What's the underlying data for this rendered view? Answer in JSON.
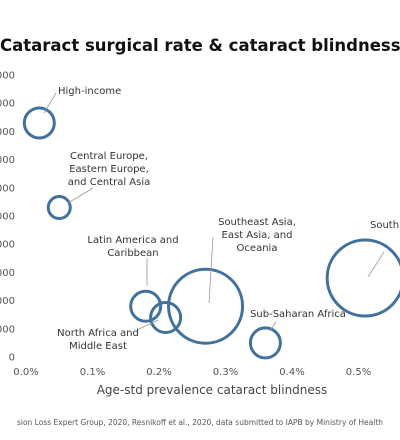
{
  "chart_data": {
    "type": "scatter",
    "title": "Cataract surgical rate & cataract blindness",
    "xlabel": "Age-std prevalence cataract blindness",
    "ylabel": "",
    "x_ticks": [
      "0.0%",
      "0.1%",
      "0.2%",
      "0.3%",
      "0.4%",
      "0.5%"
    ],
    "y_ticks": [
      "0",
      "000",
      "000",
      "000",
      "000",
      "000",
      "000",
      "000",
      "000",
      "000",
      "000"
    ],
    "xlim": [
      0,
      0.56
    ],
    "ylim": [
      0,
      10
    ],
    "grid": false,
    "legend": "none",
    "bubble_color": "#41719c",
    "points": [
      {
        "x": 0.02,
        "y": 8.3,
        "size": 15,
        "label_lines": [
          "High-income"
        ]
      },
      {
        "x": 0.05,
        "y": 5.3,
        "size": 11,
        "label_lines": [
          "Central Europe,",
          "Eastern Europe,",
          "and Central Asia"
        ]
      },
      {
        "x": 0.18,
        "y": 1.8,
        "size": 15,
        "label_lines": [
          "Latin America and",
          "Caribbean"
        ]
      },
      {
        "x": 0.21,
        "y": 1.4,
        "size": 15,
        "label_lines": [
          "North Africa and",
          "Middle East"
        ]
      },
      {
        "x": 0.27,
        "y": 1.8,
        "size": 37,
        "label_lines": [
          "Southeast Asia,",
          "East Asia, and",
          "Oceania"
        ]
      },
      {
        "x": 0.36,
        "y": 0.5,
        "size": 15,
        "label_lines": [
          "Sub-Saharan Africa"
        ]
      },
      {
        "x": 0.51,
        "y": 2.8,
        "size": 38,
        "label_lines": [
          "South"
        ]
      }
    ],
    "source_note": "sion Loss Expert Group, 2020, Resnikoff et al., 2020, data submitted to IAPB by Ministry of Health"
  }
}
